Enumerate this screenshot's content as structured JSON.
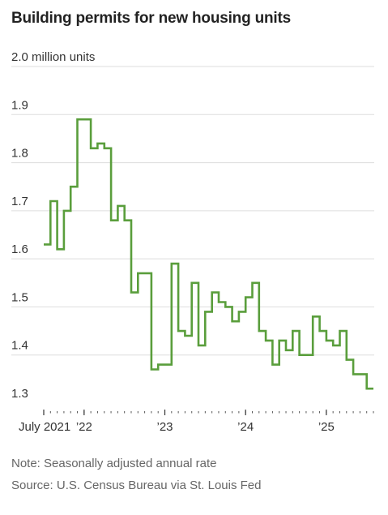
{
  "title": "Building permits for new housing units",
  "note": "Note: Seasonally adjusted annual rate",
  "source": "Source: U.S. Census Bureau via St. Louis Fed",
  "colors": {
    "line": "#5a9e3c",
    "grid": "#dddddd",
    "text": "#333333",
    "muted": "#666666"
  },
  "chart_data": {
    "type": "line",
    "step": true,
    "title": "Building permits for new housing units",
    "xlabel": "",
    "ylabel": "",
    "ylim": [
      1.3,
      2.0
    ],
    "yticks": [
      1.3,
      1.4,
      1.5,
      1.6,
      1.7,
      1.8,
      1.9,
      2.0
    ],
    "ytick_labels": [
      "1.3",
      "1.4",
      "1.5",
      "1.6",
      "1.7",
      "1.8",
      "1.9",
      "2.0 million units"
    ],
    "xticks": [
      "2021-07",
      "2022-01",
      "2023-01",
      "2024-01",
      "2025-01"
    ],
    "xtick_labels": [
      "July 2021",
      "’22",
      "’23",
      "’24",
      "’25"
    ],
    "grid": true,
    "series": [
      {
        "x": [
          "2021-07",
          "2021-08",
          "2021-09",
          "2021-10",
          "2021-11",
          "2021-12",
          "2022-01",
          "2022-02",
          "2022-03",
          "2022-04",
          "2022-05",
          "2022-06",
          "2022-07",
          "2022-08",
          "2022-09",
          "2022-10",
          "2022-11",
          "2022-12",
          "2023-01",
          "2023-02",
          "2023-03",
          "2023-04",
          "2023-05",
          "2023-06",
          "2023-07",
          "2023-08",
          "2023-09",
          "2023-10",
          "2023-11",
          "2023-12",
          "2024-01",
          "2024-02",
          "2024-03",
          "2024-04",
          "2024-05",
          "2024-06",
          "2024-07",
          "2024-08",
          "2024-09",
          "2024-10",
          "2024-11",
          "2024-12",
          "2025-01",
          "2025-02",
          "2025-03",
          "2025-04",
          "2025-05",
          "2025-06",
          "2025-07"
        ],
        "values": [
          1.63,
          1.72,
          1.62,
          1.7,
          1.75,
          1.89,
          1.89,
          1.83,
          1.84,
          1.83,
          1.68,
          1.71,
          1.68,
          1.53,
          1.57,
          1.57,
          1.37,
          1.38,
          1.38,
          1.59,
          1.45,
          1.44,
          1.55,
          1.42,
          1.49,
          1.53,
          1.51,
          1.5,
          1.47,
          1.49,
          1.52,
          1.55,
          1.45,
          1.43,
          1.38,
          1.43,
          1.41,
          1.45,
          1.4,
          1.4,
          1.48,
          1.45,
          1.43,
          1.42,
          1.45,
          1.39,
          1.36,
          1.36,
          1.33
        ]
      }
    ]
  }
}
